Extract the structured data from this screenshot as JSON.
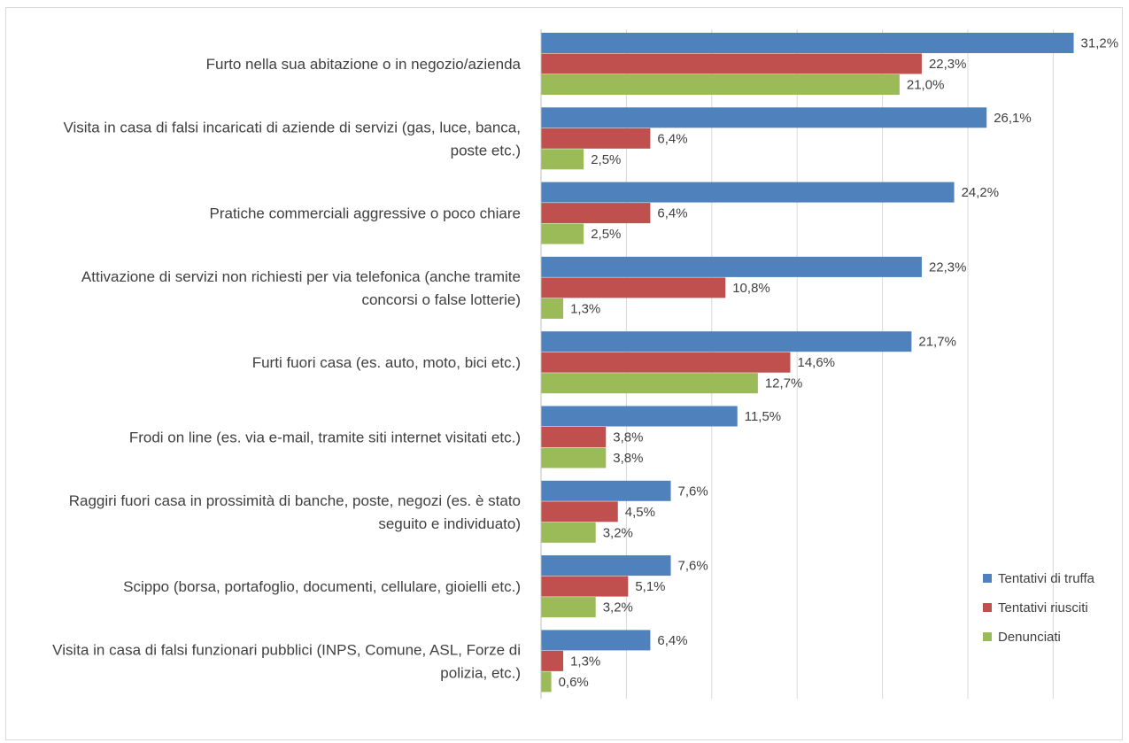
{
  "chart_data": {
    "type": "bar",
    "orientation": "horizontal",
    "categories": [
      [
        "Furto nella sua abitazione o in negozio/azienda"
      ],
      [
        "Visita in casa di falsi incaricati di aziende di servizi (gas, luce, banca,",
        "poste etc.)"
      ],
      [
        "Pratiche commerciali aggressive o poco chiare"
      ],
      [
        "Attivazione di servizi non richiesti per via telefonica (anche tramite",
        "concorsi o false lotterie)"
      ],
      [
        "Furti fuori casa (es. auto, moto, bici etc.)"
      ],
      [
        "Frodi on line (es. via e-mail, tramite siti internet visitati etc.)"
      ],
      [
        "Raggiri fuori casa in prossimità di banche, poste, negozi (es. è stato",
        "seguito e individuato)"
      ],
      [
        "Scippo (borsa, portafoglio, documenti, cellulare, gioielli etc.)"
      ],
      [
        "Visita in casa di falsi funzionari pubblici (INPS, Comune, ASL, Forze di",
        "polizia, etc.)"
      ]
    ],
    "series": [
      {
        "name": "Tentativi di truffa",
        "color": "#4f81bd",
        "values": [
          31.2,
          26.1,
          24.2,
          22.3,
          21.7,
          11.5,
          7.6,
          7.6,
          6.4
        ],
        "labels": [
          "31,2%",
          "26,1%",
          "24,2%",
          "22,3%",
          "21,7%",
          "11,5%",
          "7,6%",
          "7,6%",
          "6,4%"
        ]
      },
      {
        "name": "Tentativi riusciti",
        "color": "#c0504d",
        "values": [
          22.3,
          6.4,
          6.4,
          10.8,
          14.6,
          3.8,
          4.5,
          5.1,
          1.3
        ],
        "labels": [
          "22,3%",
          "6,4%",
          "6,4%",
          "10,8%",
          "14,6%",
          "3,8%",
          "4,5%",
          "5,1%",
          "1,3%"
        ]
      },
      {
        "name": "Denunciati",
        "color": "#9bbb59",
        "values": [
          21.0,
          2.5,
          2.5,
          1.3,
          12.7,
          3.8,
          3.2,
          3.2,
          0.6
        ],
        "labels": [
          "21,0%",
          "2,5%",
          "2,5%",
          "1,3%",
          "12,7%",
          "3,8%",
          "3,2%",
          "3,2%",
          "0,6%"
        ]
      }
    ],
    "xlim": [
      0,
      35
    ],
    "x_grid_step": 5,
    "grid": true,
    "legend_position": "right"
  }
}
